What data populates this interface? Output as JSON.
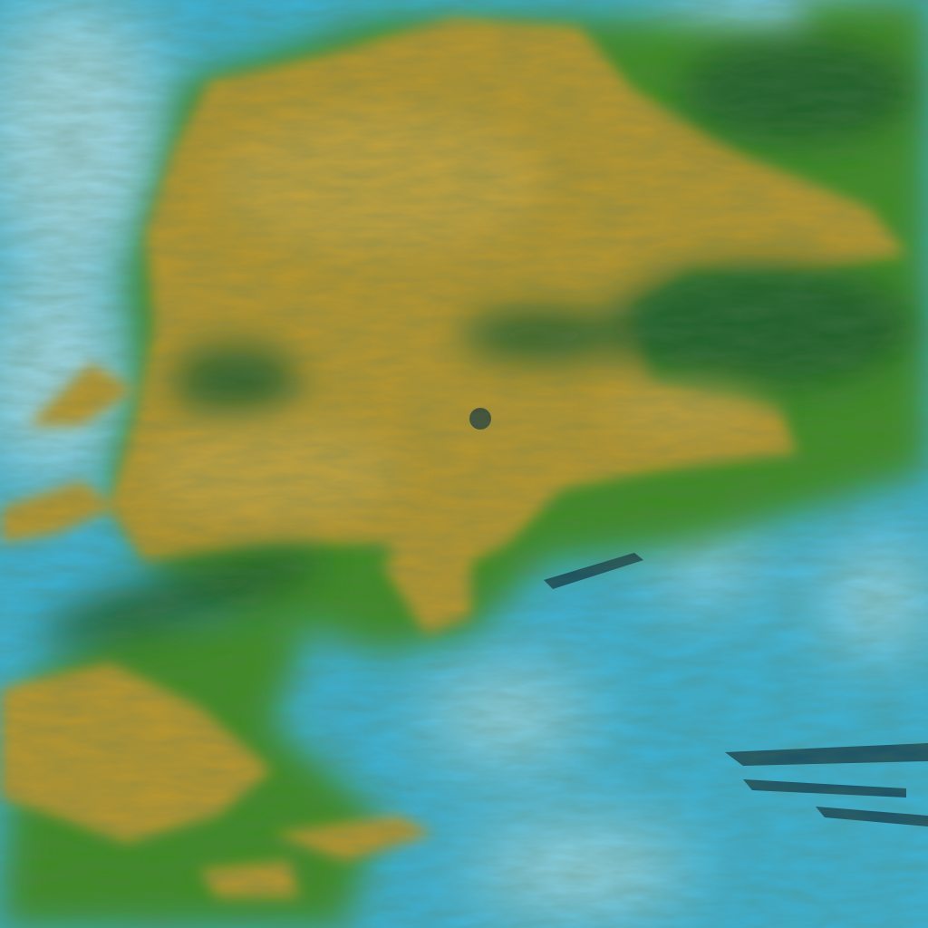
{
  "colors": {
    "ocean": "#3cb2d6",
    "ocean_light": "#6fcbe3",
    "haze": "#bfe3e8",
    "cloud_ochre": "#b8962e",
    "cloud_ochre_light": "#c9a847",
    "cloud_green": "#3c8a24",
    "cloud_dark_green": "#1f5a2a",
    "shadow": "#0c2a3a"
  }
}
